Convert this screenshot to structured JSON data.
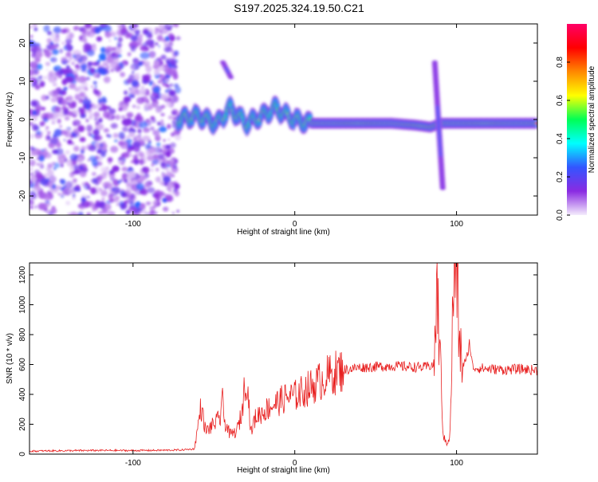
{
  "title": "S197.2025.324.19.50.C21",
  "chart_data": [
    {
      "type": "heatmap",
      "name": "spectrogram",
      "xlabel": "Height of straight line (km)",
      "ylabel": "Frequency (Hz)",
      "xlim": [
        -164,
        150
      ],
      "ylim": [
        -25,
        25
      ],
      "xticks": [
        -100,
        0,
        100
      ],
      "yticks": [
        -20,
        -10,
        0,
        10,
        20
      ],
      "colorbar": {
        "label": "Normalized spectral amplitude",
        "range": [
          0,
          1
        ],
        "ticks": [
          0.0,
          0.2,
          0.4,
          0.6,
          0.8
        ],
        "colors": [
          "#f4ecfc",
          "#8a2be2",
          "#3355ff",
          "#00ffff",
          "#00ff55",
          "#ffff00",
          "#ff8800",
          "#ff0000",
          "#ff0066"
        ]
      },
      "noise_region_x": [
        -164,
        -72
      ],
      "ridge": {
        "x": [
          -72,
          -60,
          -48,
          -40,
          -30,
          -20,
          -12,
          -5,
          0,
          10,
          30,
          60,
          75,
          84,
          90,
          100,
          120,
          150
        ],
        "y": [
          0,
          1,
          -1,
          3,
          -1,
          1,
          3,
          1,
          0,
          -1,
          -1,
          -1,
          -1.5,
          -2,
          -1,
          -1,
          -1,
          -1
        ]
      },
      "features": [
        {
          "x": 89,
          "y_range": [
            -18,
            15
          ],
          "label": "vertical spike"
        },
        {
          "x": -42,
          "y_range": [
            11,
            15
          ],
          "label": "isolated blob"
        }
      ]
    },
    {
      "type": "line",
      "name": "snr",
      "xlabel": "Height of straight line (km)",
      "ylabel": "SNR (10 * v/v)",
      "xlim": [
        -164,
        150
      ],
      "ylim": [
        0,
        1280
      ],
      "xticks": [
        -100,
        0,
        100
      ],
      "yticks": [
        0,
        200,
        400,
        600,
        800,
        1000,
        1200
      ],
      "color": "#e82020",
      "series": {
        "x": [
          -164,
          -150,
          -120,
          -100,
          -80,
          -70,
          -62,
          -60,
          -58,
          -55,
          -50,
          -46,
          -45,
          -44,
          -40,
          -36,
          -33,
          -30,
          -28,
          -27,
          -25,
          -23,
          -20,
          -15,
          -10,
          -5,
          0,
          10,
          20,
          28,
          40,
          60,
          80,
          86,
          88,
          90,
          92,
          94,
          96,
          98,
          100,
          102,
          104,
          106,
          108,
          110,
          120,
          130,
          140,
          150
        ],
        "y": [
          20,
          22,
          25,
          24,
          26,
          28,
          35,
          180,
          320,
          150,
          200,
          240,
          420,
          240,
          130,
          150,
          260,
          550,
          280,
          140,
          230,
          260,
          280,
          320,
          350,
          380,
          390,
          450,
          520,
          560,
          580,
          590,
          580,
          600,
          1100,
          600,
          100,
          80,
          120,
          1100,
          1260,
          700,
          600,
          620,
          750,
          580,
          570,
          565,
          570,
          560
        ]
      }
    }
  ]
}
